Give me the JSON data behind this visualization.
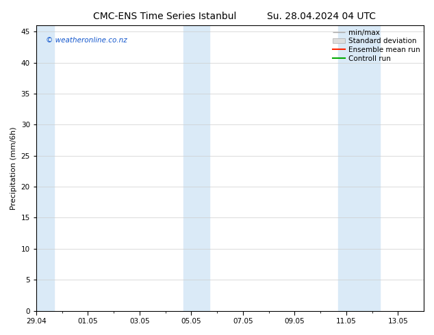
{
  "title_left": "CMC-ENS Time Series Istanbul",
  "title_right": "Su. 28.04.2024 04 UTC",
  "ylabel": "Precipitation (mm/6h)",
  "ylim": [
    0,
    46
  ],
  "yticks": [
    0,
    5,
    10,
    15,
    20,
    25,
    30,
    35,
    40,
    45
  ],
  "xlim": [
    0,
    15
  ],
  "xtick_labels": [
    "29.04",
    "01.05",
    "03.05",
    "05.05",
    "07.05",
    "09.05",
    "11.05",
    "13.05"
  ],
  "xtick_positions": [
    0,
    2,
    4,
    6,
    8,
    10,
    12,
    14
  ],
  "shaded_bands": [
    {
      "start": -0.3,
      "end": 0.7
    },
    {
      "start": 5.7,
      "end": 6.7
    },
    {
      "start": 11.7,
      "end": 13.3
    }
  ],
  "shade_color": "#daeaf7",
  "background_color": "#ffffff",
  "watermark": "© weatheronline.co.nz",
  "watermark_color": "#1155cc",
  "legend_labels": [
    "min/max",
    "Standard deviation",
    "Ensemble mean run",
    "Controll run"
  ],
  "legend_colors": [
    "#aaaaaa",
    "#cccccc",
    "#ff2200",
    "#00aa00"
  ],
  "title_fontsize": 10,
  "tick_label_fontsize": 7.5,
  "ylabel_fontsize": 8,
  "legend_fontsize": 7.5
}
